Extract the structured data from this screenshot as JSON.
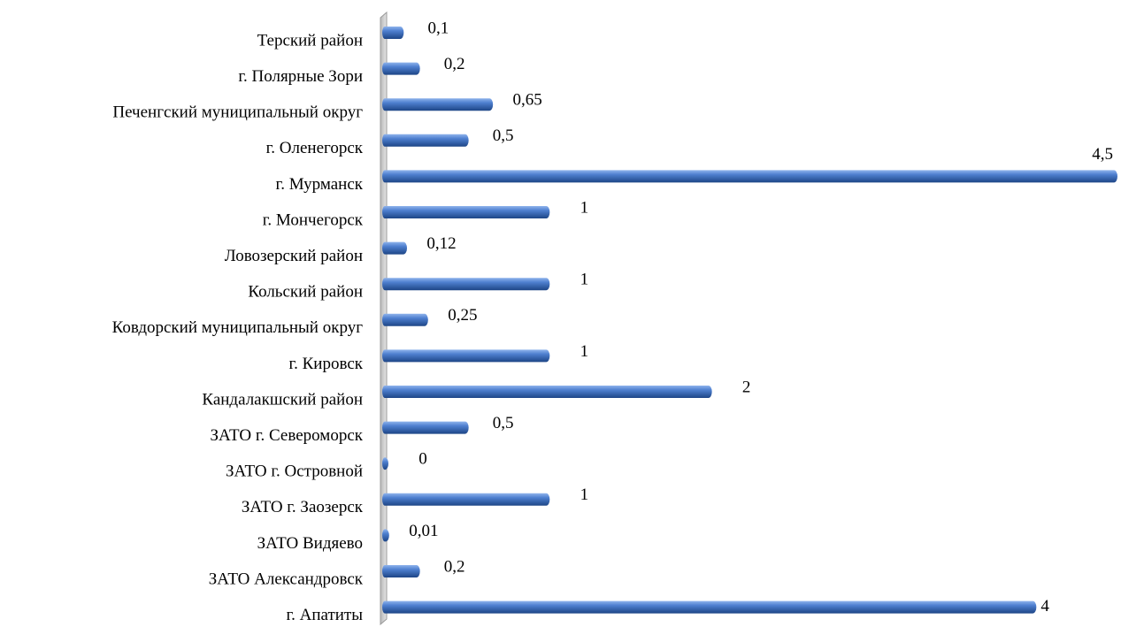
{
  "chart_data": {
    "type": "bar",
    "orientation": "horizontal",
    "categories": [
      "Терский район",
      "г. Полярные Зори",
      "Печенгский муниципальный округ",
      "г. Оленегорск",
      "г. Мурманск",
      "г. Мончегорск",
      "Ловозерский район",
      "Кольский район",
      "Ковдорский муниципальный округ",
      "г. Кировск",
      "Кандалакшский район",
      "ЗАТО г. Североморск",
      "ЗАТО г. Островной",
      "ЗАТО г. Заозерск",
      "ЗАТО Видяево",
      "ЗАТО Александровск",
      "г. Апатиты"
    ],
    "values": [
      0.1,
      0.2,
      0.65,
      0.5,
      4.5,
      1,
      0.12,
      1,
      0.25,
      1,
      2,
      0.5,
      0,
      1,
      0.01,
      0.2,
      4
    ],
    "value_labels": [
      "0,1",
      "0,2",
      "0,65",
      "0,5",
      "4,5",
      "1",
      "0,12",
      "1",
      "0,25",
      "1",
      "2",
      "0,5",
      "0",
      "1",
      "0,01",
      "0,2",
      "4"
    ],
    "color": "#3f6fc0",
    "xlim": [
      0,
      4.5
    ]
  }
}
